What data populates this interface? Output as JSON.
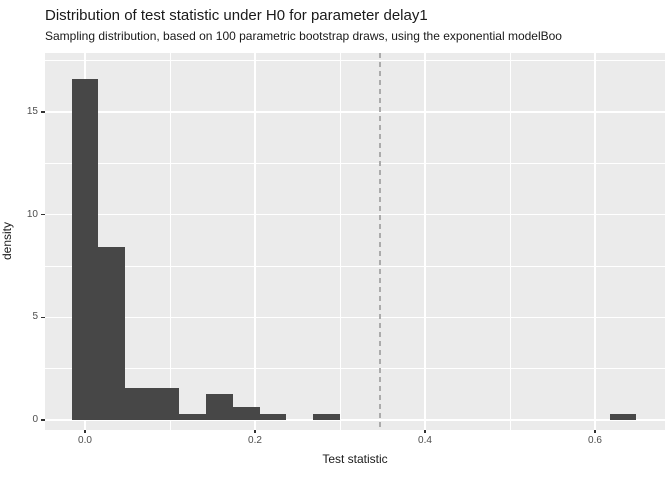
{
  "chart_data": {
    "type": "bar",
    "subtype": "histogram",
    "title": "Distribution of test statistic under H0 for parameter delay1",
    "subtitle": "Sampling distribution, based on 100 parametric bootstrap draws, using the exponential modelBoo",
    "xlabel": "Test statistic",
    "ylabel": "density",
    "n_draws": 100,
    "binwidth": 0.0316,
    "x_ticks": {
      "values": [
        0.0,
        0.2,
        0.4,
        0.6
      ],
      "labels": [
        "0.0",
        "0.2",
        "0.4",
        "0.6"
      ]
    },
    "y_ticks": {
      "values": [
        0,
        5,
        10,
        15
      ],
      "labels": [
        "0",
        "5",
        "10",
        "15"
      ]
    },
    "x_minor": [
      0.1,
      0.3,
      0.5
    ],
    "y_minor": [
      2.5,
      7.5,
      12.5,
      17.5
    ],
    "xlim": [
      -0.047,
      0.682
    ],
    "ylim": [
      -0.49,
      17.87
    ],
    "grid": true,
    "legend": false,
    "bars": [
      {
        "x0": -0.0158,
        "x1": 0.0158,
        "density": 16.6,
        "count": 53
      },
      {
        "x0": 0.0158,
        "x1": 0.0474,
        "density": 8.43,
        "count": 27
      },
      {
        "x0": 0.0474,
        "x1": 0.079,
        "density": 1.55,
        "count": 5
      },
      {
        "x0": 0.079,
        "x1": 0.1106,
        "density": 1.55,
        "count": 5
      },
      {
        "x0": 0.1106,
        "x1": 0.1422,
        "density": 0.31,
        "count": 1
      },
      {
        "x0": 0.1422,
        "x1": 0.1738,
        "density": 1.25,
        "count": 4
      },
      {
        "x0": 0.1738,
        "x1": 0.2054,
        "density": 0.62,
        "count": 2
      },
      {
        "x0": 0.2054,
        "x1": 0.237,
        "density": 0.31,
        "count": 1
      },
      {
        "x0": 0.2686,
        "x1": 0.3002,
        "density": 0.31,
        "count": 1
      },
      {
        "x0": 0.6172,
        "x1": 0.6488,
        "density": 0.31,
        "count": 1
      }
    ],
    "vline": {
      "x": 0.347,
      "style": "dashed"
    },
    "colors": {
      "bar": "#474747",
      "panel_bg": "#EBEBEB",
      "grid": "#FFFFFF",
      "vline": "#ABABAB",
      "tick": "#333333",
      "tick_label": "#4D4D4D",
      "title": "#1A1A1A"
    }
  }
}
